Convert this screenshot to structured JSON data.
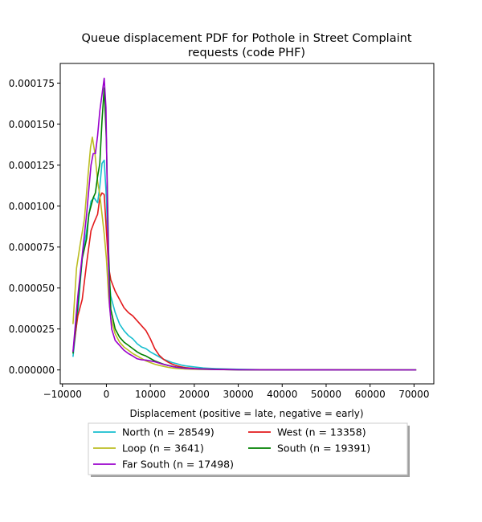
{
  "chart_data": {
    "type": "line",
    "title": "Queue displacement PDF for Pothole in Street Complaint\nrequests (code PHF)",
    "xlabel": "Displacement (positive = late, negative = early)",
    "ylabel": "",
    "xlim": [
      -10500,
      74500
    ],
    "ylim": [
      -8.5e-06,
      0.000187
    ],
    "xticks": [
      -10000,
      0,
      10000,
      20000,
      30000,
      40000,
      50000,
      60000,
      70000
    ],
    "xtick_labels": [
      "−10000",
      "0",
      "10000",
      "20000",
      "30000",
      "40000",
      "50000",
      "60000",
      "70000"
    ],
    "yticks": [
      0,
      2.5e-05,
      5e-05,
      7.5e-05,
      0.0001,
      0.000125,
      0.00015,
      0.000175
    ],
    "ytick_labels": [
      "0.000000",
      "0.000025",
      "0.000050",
      "0.000075",
      "0.000100",
      "0.000125",
      "0.000150",
      "0.000175"
    ],
    "grid": false,
    "legend": {
      "placement": "below",
      "columns": 2
    },
    "series": [
      {
        "name": "North (n = 28549)",
        "color": "#17becf",
        "x": [
          -7600,
          -6500,
          -5500,
          -4500,
          -3500,
          -2800,
          -2000,
          -1500,
          -1000,
          -500,
          0,
          500,
          1000,
          2000,
          3000,
          4000,
          5000,
          6000,
          7000,
          8000,
          9000,
          10000,
          11000,
          12000,
          13000,
          14000,
          15000,
          16000,
          17000,
          18000,
          20000,
          22000,
          25000,
          30000,
          35000,
          40000,
          50000,
          60000,
          70500
        ],
        "y": [
          8e-06,
          3.5e-05,
          6.8e-05,
          8.5e-05,
          0.000103,
          0.000105,
          0.000102,
          0.000112,
          0.000126,
          0.000128,
          0.000105,
          6e-05,
          4.5e-05,
          3.5e-05,
          2.8e-05,
          2.4e-05,
          2.1e-05,
          1.9e-05,
          1.6e-05,
          1.4e-05,
          1.3e-05,
          1.1e-05,
          9.5e-06,
          8e-06,
          6.5e-06,
          5.5e-06,
          4.5e-06,
          3.8e-06,
          3e-06,
          2.5e-06,
          1.8e-06,
          1.2e-06,
          8e-07,
          4e-07,
          2e-07,
          1e-07,
          5e-08,
          3e-08,
          2e-08
        ]
      },
      {
        "name": "West (n = 13358)",
        "color": "#e31a1c",
        "x": [
          -7600,
          -6500,
          -5500,
          -4500,
          -3500,
          -2800,
          -2000,
          -1500,
          -1000,
          -500,
          0,
          500,
          1000,
          2000,
          3000,
          4000,
          5000,
          6000,
          7000,
          8000,
          9000,
          10000,
          11000,
          12000,
          13000,
          14000,
          15000,
          16000,
          17000,
          18000,
          20000,
          22000,
          25000,
          30000,
          35000,
          40000,
          50000,
          60000,
          70500
        ],
        "y": [
          1.1e-05,
          3.3e-05,
          4.3e-05,
          6.5e-05,
          8.5e-05,
          9e-05,
          9.5e-05,
          0.000105,
          0.000108,
          0.000107,
          8.5e-05,
          6.3e-05,
          5.5e-05,
          4.8e-05,
          4.3e-05,
          3.8e-05,
          3.5e-05,
          3.3e-05,
          3e-05,
          2.7e-05,
          2.4e-05,
          1.9e-05,
          1.3e-05,
          9e-06,
          6.5e-06,
          4.8e-06,
          3.5e-06,
          2.6e-06,
          1.9e-06,
          1.4e-06,
          9e-07,
          6e-07,
          4e-07,
          2e-07,
          1e-07,
          5e-08,
          3e-08,
          2e-08,
          1e-08
        ]
      },
      {
        "name": "Loop (n = 3641)",
        "color": "#bcbd22",
        "x": [
          -7600,
          -6800,
          -6000,
          -5000,
          -4200,
          -3600,
          -3200,
          -2600,
          -2000,
          -1500,
          -1000,
          -500,
          0,
          500,
          1000,
          2000,
          3000,
          4000,
          5000,
          6000,
          7000,
          8000,
          9000,
          10000,
          11000,
          12000,
          13000,
          14000,
          15000,
          16000,
          18000,
          20000,
          25000,
          30000,
          40000,
          50000,
          60000,
          70500
        ],
        "y": [
          2.8e-05,
          6.2e-05,
          7.6e-05,
          9.2e-05,
          0.000118,
          0.000136,
          0.000142,
          0.000132,
          0.000115,
          0.000107,
          9.5e-05,
          8.3e-05,
          6.8e-05,
          4.5e-05,
          3.2e-05,
          2.2e-05,
          1.7e-05,
          1.4e-05,
          1.2e-05,
          1e-05,
          8.5e-06,
          7e-06,
          5.5e-06,
          4.5e-06,
          3.5e-06,
          2.8e-06,
          2.2e-06,
          1.6e-06,
          1.2e-06,
          9e-07,
          6e-07,
          4e-07,
          2e-07,
          1e-07,
          5e-08,
          2e-08,
          1e-08,
          1e-08
        ]
      },
      {
        "name": "South (n = 19391)",
        "color": "#008000",
        "x": [
          -7600,
          -6500,
          -5500,
          -4500,
          -4000,
          -3000,
          -2500,
          -2000,
          -1500,
          -1000,
          -500,
          0,
          500,
          1000,
          2000,
          3000,
          4000,
          5000,
          6000,
          7000,
          8000,
          9000,
          10000,
          11000,
          12000,
          13000,
          14000,
          15000,
          16000,
          18000,
          20000,
          22000,
          25000,
          30000,
          40000,
          50000,
          60000,
          70500
        ],
        "y": [
          1e-05,
          4e-05,
          6.8e-05,
          8e-05,
          9.5e-05,
          0.000105,
          0.000108,
          0.000118,
          0.000126,
          0.000152,
          0.000172,
          0.00014,
          7.2e-05,
          3.7e-05,
          2.5e-05,
          2e-05,
          1.7e-05,
          1.5e-05,
          1.3e-05,
          1.1e-05,
          9.5e-06,
          8.5e-06,
          7e-06,
          5.5e-06,
          4.5e-06,
          3.5e-06,
          2.8e-06,
          2.2e-06,
          1.7e-06,
          1.1e-06,
          7e-07,
          5e-07,
          3e-07,
          1e-07,
          5e-08,
          2e-08,
          1e-08,
          1e-08
        ]
      },
      {
        "name": "Far South (n = 17498)",
        "color": "#9900cc",
        "x": [
          -7600,
          -6500,
          -5500,
          -4500,
          -3500,
          -3000,
          -2500,
          -2000,
          -1500,
          -1000,
          -500,
          -100,
          300,
          700,
          1200,
          2000,
          3000,
          4000,
          5000,
          6000,
          7000,
          8000,
          9000,
          10000,
          11000,
          12000,
          13000,
          14000,
          15000,
          16000,
          18000,
          20000,
          25000,
          30000,
          40000,
          50000,
          60000,
          70500
        ],
        "y": [
          1.1e-05,
          4.5e-05,
          7e-05,
          9.5e-05,
          0.000125,
          0.000132,
          0.000132,
          0.000143,
          0.000158,
          0.000168,
          0.000178,
          0.00016,
          9e-05,
          4e-05,
          2.5e-05,
          1.8e-05,
          1.5e-05,
          1.2e-05,
          1e-05,
          8.5e-06,
          6.8e-06,
          6.2e-06,
          6e-06,
          5.5e-06,
          5e-06,
          4.2e-06,
          3.4e-06,
          2.7e-06,
          2.1e-06,
          1.6e-06,
          1e-06,
          7e-07,
          3e-07,
          1e-07,
          5e-08,
          2e-08,
          1e-08,
          1e-08
        ]
      }
    ]
  }
}
